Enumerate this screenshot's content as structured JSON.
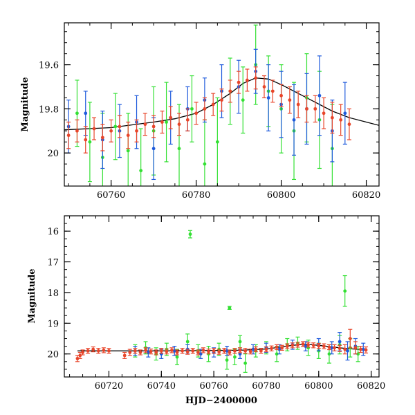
{
  "chart_data": [
    {
      "type": "scatter",
      "title": "",
      "xlabel": "",
      "ylabel": "Magnitude",
      "xlim": [
        60749,
        60823
      ],
      "ylim": [
        20.15,
        19.41
      ],
      "y_inverted": true,
      "grid": false,
      "x_ticks": [
        60760,
        60780,
        60800,
        60820
      ],
      "x_tick_labels": [
        "60760",
        "60780",
        "60800",
        "60820"
      ],
      "y_ticks": [
        19.6,
        19.8,
        20.0
      ],
      "y_tick_labels": [
        "19.6",
        "19.8",
        "20"
      ],
      "model_curve": {
        "color": "#000000",
        "x": [
          60749,
          60760,
          60770,
          60775,
          60780,
          60784,
          60788,
          60791,
          60794,
          60797,
          60800,
          60804,
          60808,
          60812,
          60816,
          60820,
          60823
        ],
        "y": [
          19.895,
          19.885,
          19.86,
          19.845,
          19.82,
          19.78,
          19.73,
          19.685,
          19.66,
          19.665,
          19.69,
          19.73,
          19.77,
          19.81,
          19.84,
          19.86,
          19.875
        ]
      },
      "series": [
        {
          "color": "#33e033",
          "x": [
            60752,
            60755,
            60758,
            60761,
            60764,
            60767,
            60770,
            60773,
            60776,
            60779,
            60782,
            60785,
            60788,
            60791,
            60794,
            60797,
            60800,
            60803,
            60806,
            60809,
            60812
          ],
          "y": [
            19.82,
            19.95,
            20.02,
            19.88,
            19.99,
            20.08,
            19.9,
            19.86,
            19.98,
            19.8,
            20.05,
            19.95,
            19.72,
            19.76,
            19.6,
            19.72,
            19.8,
            19.9,
            19.75,
            19.85,
            19.98
          ],
          "err": [
            0.15,
            0.18,
            0.2,
            0.15,
            0.17,
            0.19,
            0.2,
            0.18,
            0.2,
            0.15,
            0.2,
            0.2,
            0.15,
            0.15,
            0.18,
            0.16,
            0.2,
            0.22,
            0.2,
            0.22,
            0.2
          ]
        },
        {
          "color": "#1e5adc",
          "x": [
            60750,
            60754,
            60758,
            60762,
            60766,
            60770,
            60774,
            60778,
            60782,
            60786,
            60790,
            60794,
            60797,
            60800,
            60803,
            60806,
            60809,
            60812,
            60815
          ],
          "y": [
            19.88,
            19.82,
            19.94,
            19.9,
            19.86,
            19.98,
            19.84,
            19.8,
            19.76,
            19.72,
            19.7,
            19.63,
            19.75,
            19.78,
            19.85,
            19.8,
            19.74,
            19.9,
            19.82
          ],
          "err": [
            0.12,
            0.1,
            0.13,
            0.12,
            0.12,
            0.14,
            0.12,
            0.1,
            0.1,
            0.12,
            0.12,
            0.1,
            0.15,
            0.15,
            0.16,
            0.16,
            0.18,
            0.14,
            0.14
          ]
        },
        {
          "color": "#e8452a",
          "x": [
            60750,
            60752,
            60754,
            60756,
            60758,
            60760,
            60762,
            60764,
            60766,
            60768,
            60770,
            60772,
            60774,
            60776,
            60778,
            60780,
            60782,
            60784,
            60786,
            60788,
            60790,
            60792,
            60794,
            60796,
            60798,
            60800,
            60802,
            60804,
            60806,
            60808,
            60810,
            60812,
            60814,
            60816
          ],
          "y": [
            19.92,
            19.9,
            19.94,
            19.89,
            19.93,
            19.9,
            19.88,
            19.92,
            19.9,
            19.87,
            19.88,
            19.86,
            19.84,
            19.87,
            19.85,
            19.82,
            19.8,
            19.78,
            19.76,
            19.72,
            19.68,
            19.67,
            19.66,
            19.7,
            19.72,
            19.74,
            19.76,
            19.78,
            19.8,
            19.8,
            19.82,
            19.84,
            19.85,
            19.87
          ],
          "err": [
            0.06,
            0.05,
            0.06,
            0.05,
            0.06,
            0.05,
            0.05,
            0.06,
            0.05,
            0.05,
            0.05,
            0.05,
            0.05,
            0.05,
            0.05,
            0.05,
            0.05,
            0.05,
            0.05,
            0.05,
            0.05,
            0.05,
            0.05,
            0.05,
            0.05,
            0.05,
            0.06,
            0.06,
            0.06,
            0.06,
            0.07,
            0.07,
            0.07,
            0.07
          ]
        }
      ]
    },
    {
      "type": "scatter",
      "title": "",
      "xlabel": "HJD−2400000",
      "ylabel": "Magnitude",
      "xlim": [
        60703,
        60823
      ],
      "ylim": [
        20.75,
        15.5
      ],
      "y_inverted": true,
      "grid": false,
      "x_ticks": [
        60720,
        60740,
        60760,
        60780,
        60800,
        60820
      ],
      "x_tick_labels": [
        "60720",
        "60740",
        "60760",
        "60780",
        "60800",
        "60820"
      ],
      "y_ticks": [
        16,
        17,
        18,
        19,
        20
      ],
      "y_tick_labels": [
        "16",
        "17",
        "18",
        "19",
        "20"
      ],
      "model_curve": {
        "color": "#000000",
        "x": [
          60708,
          60740,
          60770,
          60780,
          60790,
          60795,
          60800,
          60810,
          60818
        ],
        "y": [
          19.9,
          19.9,
          19.88,
          19.84,
          19.72,
          19.68,
          19.72,
          19.82,
          19.87
        ]
      },
      "series": [
        {
          "color": "#33e033",
          "x": [
            60730,
            60734,
            60738,
            60742,
            60746,
            60750,
            60751,
            60754,
            60758,
            60762,
            60765,
            60766,
            60768,
            60770,
            60772,
            60776,
            60780,
            60784,
            60788,
            60792,
            60796,
            60800,
            60804,
            60808,
            60810,
            60812,
            60815
          ],
          "y": [
            19.9,
            19.8,
            20.0,
            19.85,
            20.1,
            19.6,
            16.1,
            19.9,
            20.0,
            19.85,
            20.2,
            18.5,
            20.1,
            19.6,
            20.3,
            19.9,
            19.8,
            20.0,
            19.7,
            19.65,
            19.8,
            19.9,
            20.0,
            19.7,
            17.95,
            19.8,
            20.0
          ],
          "err": [
            0.2,
            0.2,
            0.2,
            0.2,
            0.25,
            0.25,
            0.12,
            0.2,
            0.25,
            0.2,
            0.3,
            0.05,
            0.25,
            0.2,
            0.3,
            0.2,
            0.2,
            0.25,
            0.2,
            0.2,
            0.25,
            0.25,
            0.3,
            0.3,
            0.5,
            0.3,
            0.25
          ]
        },
        {
          "color": "#1e5adc",
          "x": [
            60730,
            60735,
            60740,
            60745,
            60750,
            60755,
            60760,
            60765,
            60770,
            60775,
            60780,
            60785,
            60790,
            60795,
            60800,
            60805,
            60808,
            60811,
            60814,
            60817
          ],
          "y": [
            19.9,
            19.95,
            20.0,
            19.9,
            19.85,
            20.0,
            19.95,
            19.9,
            20.0,
            19.85,
            19.8,
            19.85,
            19.7,
            19.75,
            19.7,
            19.8,
            19.6,
            19.9,
            19.75,
            19.85
          ],
          "err": [
            0.15,
            0.15,
            0.15,
            0.15,
            0.15,
            0.15,
            0.15,
            0.15,
            0.15,
            0.15,
            0.15,
            0.15,
            0.15,
            0.15,
            0.2,
            0.2,
            0.3,
            0.3,
            0.25,
            0.2
          ]
        },
        {
          "color": "#e8452a",
          "x": [
            60708,
            60709,
            60710,
            60712,
            60714,
            60716,
            60718,
            60720,
            60726,
            60728,
            60730,
            60732,
            60734,
            60736,
            60738,
            60740,
            60742,
            60744,
            60746,
            60748,
            60750,
            60752,
            60754,
            60756,
            60758,
            60760,
            60762,
            60764,
            60766,
            60768,
            60770,
            60772,
            60774,
            60776,
            60778,
            60780,
            60782,
            60784,
            60786,
            60788,
            60790,
            60792,
            60794,
            60796,
            60798,
            60800,
            60802,
            60804,
            60806,
            60808,
            60810,
            60812,
            60814,
            60816,
            60818
          ],
          "y": [
            20.15,
            20.05,
            19.95,
            19.9,
            19.85,
            19.9,
            19.88,
            19.9,
            20.05,
            19.95,
            19.9,
            19.95,
            19.88,
            19.92,
            19.95,
            19.9,
            19.92,
            19.88,
            19.95,
            19.9,
            19.93,
            19.9,
            19.95,
            19.88,
            19.92,
            19.9,
            19.93,
            19.9,
            19.95,
            19.9,
            19.88,
            19.9,
            19.92,
            19.85,
            19.9,
            19.85,
            19.82,
            19.78,
            19.8,
            19.75,
            19.72,
            19.7,
            19.68,
            19.7,
            19.72,
            19.74,
            19.75,
            19.78,
            19.8,
            19.82,
            19.85,
            19.5,
            19.8,
            19.85,
            19.87
          ],
          "err": [
            0.1,
            0.1,
            0.08,
            0.08,
            0.08,
            0.08,
            0.08,
            0.08,
            0.1,
            0.1,
            0.08,
            0.08,
            0.08,
            0.08,
            0.08,
            0.08,
            0.08,
            0.08,
            0.08,
            0.08,
            0.08,
            0.08,
            0.08,
            0.08,
            0.08,
            0.08,
            0.08,
            0.08,
            0.08,
            0.08,
            0.08,
            0.08,
            0.08,
            0.08,
            0.08,
            0.08,
            0.08,
            0.08,
            0.08,
            0.08,
            0.08,
            0.08,
            0.08,
            0.08,
            0.08,
            0.08,
            0.08,
            0.08,
            0.1,
            0.1,
            0.15,
            0.3,
            0.2,
            0.1,
            0.1
          ]
        }
      ]
    }
  ]
}
